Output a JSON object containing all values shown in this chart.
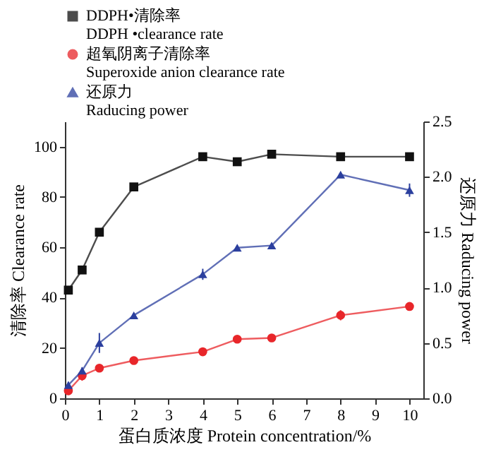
{
  "chart_data": {
    "type": "line",
    "xlabel": "蛋白质浓度 Protein concentration/%",
    "ylabel": "清除率 Clearance rate",
    "y2label": "还原力 Raducing power",
    "x": [
      0.1,
      0.5,
      1,
      2,
      4,
      5,
      6,
      8,
      10
    ],
    "xlim": [
      0,
      10.4
    ],
    "xticks": [
      0,
      1,
      2,
      3,
      4,
      5,
      6,
      7,
      8,
      9,
      10
    ],
    "ylim": [
      0,
      110
    ],
    "yticks": [
      0,
      20,
      40,
      60,
      80,
      100
    ],
    "y2lim": [
      0,
      2.5
    ],
    "y2ticks": [
      {
        "value": 0,
        "label": "0.0"
      },
      0.5,
      {
        "value": 1,
        "label": "1.0"
      },
      1.5,
      {
        "value": 2,
        "label": "2.0"
      },
      2.5
    ],
    "legend": "top",
    "grid": false,
    "series": [
      {
        "name": "DDPH•清除率\nDDPH •clearance rate",
        "color": "#111111",
        "marker": "square",
        "values": [
          43,
          51,
          66,
          84,
          96,
          94,
          97,
          96,
          96
        ]
      },
      {
        "name": "超氧阴离子清除率\nSuperoxide anion clearance rate",
        "color": "#e8262a",
        "marker": "circle",
        "values": [
          3,
          9,
          12,
          15,
          18.5,
          23.5,
          24,
          33,
          36.5
        ],
        "errors": [
          1,
          2,
          1,
          1,
          1,
          1,
          1,
          2,
          1.5
        ]
      },
      {
        "name": "还原力\nRaducing power",
        "color": "#2b3f9e",
        "marker": "triangle",
        "axis": "y2",
        "values": [
          0.12,
          0.25,
          0.5,
          0.75,
          1.12,
          1.36,
          1.38,
          2.02,
          1.88
        ],
        "errors": [
          0.03,
          0.03,
          0.09,
          0.02,
          0.05,
          0.02,
          0.02,
          0.02,
          0.06
        ]
      }
    ]
  }
}
